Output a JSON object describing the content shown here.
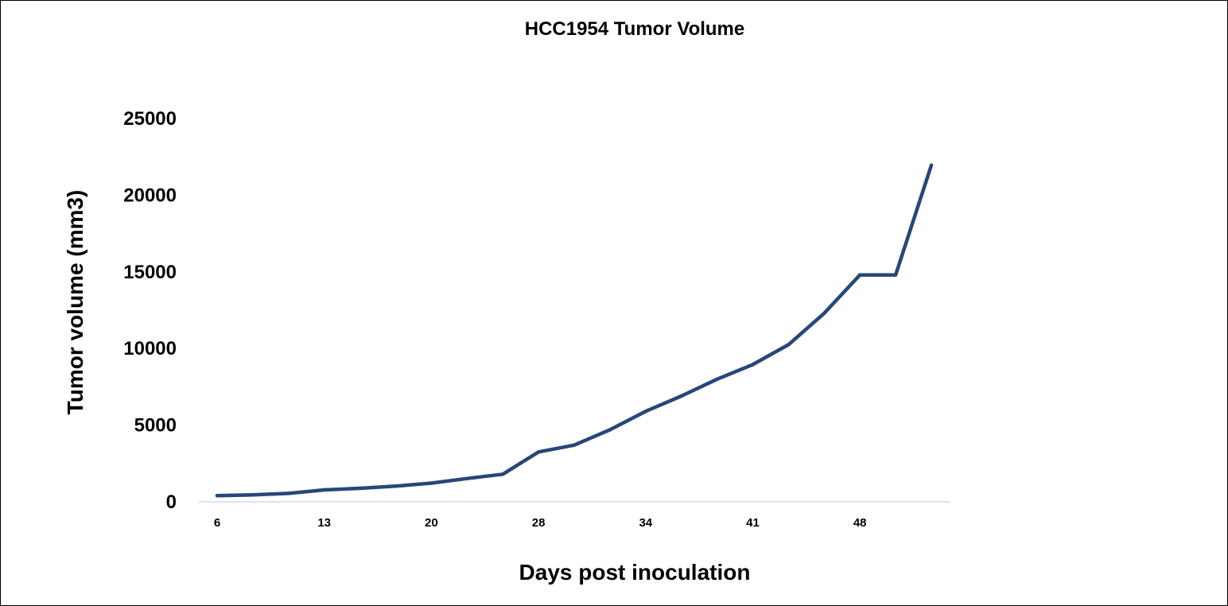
{
  "chart_data": {
    "type": "line",
    "title": "HCC1954 Tumor Volume",
    "xlabel": "Days post inoculation",
    "ylabel": "Tumor volume (mm3)",
    "ylim": [
      0,
      25000
    ],
    "y_ticks": [
      0,
      5000,
      10000,
      15000,
      20000,
      25000
    ],
    "x_tick_labels": [
      "6",
      "13",
      "20",
      "28",
      "34",
      "41",
      "48"
    ],
    "grid": false,
    "legend": "none",
    "series": [
      {
        "color": "#264778",
        "values": [
          400,
          450,
          550,
          780,
          880,
          1020,
          1220,
          1520,
          1800,
          3250,
          3700,
          4700,
          5900,
          6900,
          8000,
          8950,
          10250,
          12300,
          14800,
          14800,
          21950
        ]
      }
    ]
  }
}
